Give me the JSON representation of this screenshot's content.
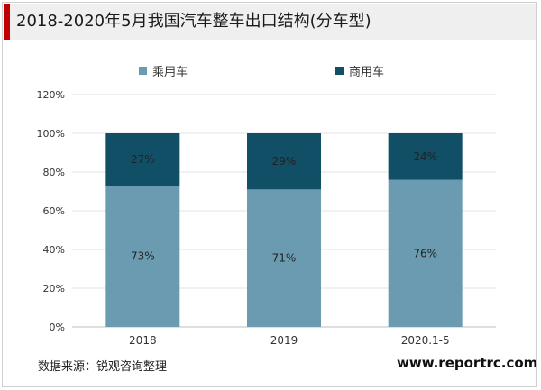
{
  "title": "2018-2020年5月我国汽车整车出口结构(分车型)",
  "source": "数据来源：锐观咨询整理",
  "website": "www.reportrc.com",
  "chart_data": {
    "type": "bar",
    "stacked": true,
    "categories": [
      "2018",
      "2019",
      "2020.1-5"
    ],
    "series": [
      {
        "name": "乘用车",
        "values": [
          73,
          71,
          76
        ],
        "labels": [
          "73%",
          "71%",
          "76%"
        ],
        "color": "#6a9bb0"
      },
      {
        "name": "商用车",
        "values": [
          27,
          29,
          24
        ],
        "labels": [
          "27%",
          "29%",
          "24%"
        ],
        "color": "#114f66"
      }
    ],
    "yticks": [
      "0%",
      "20%",
      "40%",
      "60%",
      "80%",
      "100%",
      "120%"
    ],
    "ylim": [
      0,
      120
    ],
    "grid": true,
    "legend_position": "top-center"
  }
}
